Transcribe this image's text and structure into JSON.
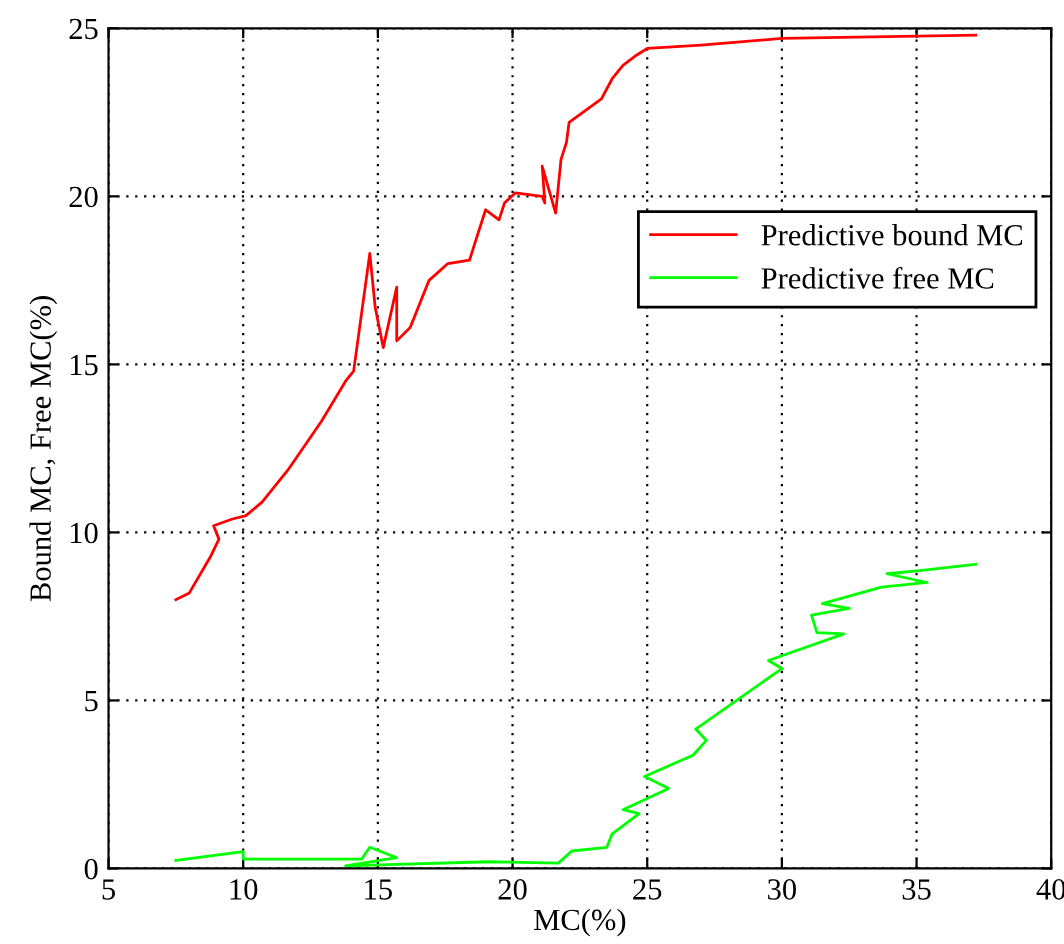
{
  "chart_data": {
    "type": "line",
    "xlabel": "MC(%)",
    "ylabel": "Bound MC, Free MC(%)",
    "xlim": [
      5,
      40
    ],
    "xticks": [
      5,
      10,
      15,
      20,
      25,
      30,
      35,
      40
    ],
    "ylim": [
      0,
      25
    ],
    "yticks": [
      0,
      5,
      10,
      15,
      20,
      25
    ],
    "grid": true,
    "legend": "top right",
    "line_style": "solid",
    "marker": "none",
    "series": [
      {
        "name": "Predictive bound MC",
        "color": "#ff0000",
        "x": [
          7.5,
          8.0,
          8.8,
          9.1,
          8.9,
          9.6,
          10.1,
          10.7,
          11.7,
          12.9,
          13.8,
          14.1,
          14.7,
          14.9,
          15.2,
          15.7,
          15.7,
          16.2,
          16.9,
          17.6,
          18.4,
          19.0,
          19.5,
          19.7,
          20.1,
          21.1,
          21.2,
          21.1,
          21.6,
          21.8,
          22.0,
          22.1,
          23.3,
          23.7,
          24.1,
          24.6,
          25.0,
          27.0,
          30.0,
          37.2
        ],
        "values": [
          8.0,
          8.2,
          9.3,
          9.8,
          10.2,
          10.4,
          10.5,
          10.9,
          11.9,
          13.3,
          14.5,
          14.8,
          18.3,
          16.7,
          15.5,
          17.3,
          15.7,
          16.1,
          17.5,
          18.0,
          18.1,
          19.6,
          19.3,
          19.8,
          20.1,
          20.0,
          19.8,
          20.9,
          19.5,
          21.1,
          21.6,
          22.2,
          22.9,
          23.5,
          23.9,
          24.2,
          24.4,
          24.5,
          24.7,
          24.8
        ]
      },
      {
        "name": "Predictive free MC",
        "color": "#00ff00",
        "x": [
          7.5,
          10.0,
          10.0,
          14.4,
          14.7,
          15.7,
          13.8,
          19.1,
          21.7,
          22.2,
          23.5,
          23.7,
          24.7,
          24.1,
          25.8,
          24.9,
          26.7,
          27.2,
          26.8,
          30.0,
          29.5,
          32.3,
          31.3,
          31.1,
          32.5,
          31.5,
          33.7,
          35.4,
          33.9,
          35.2,
          37.2
        ],
        "values": [
          0.24,
          0.5,
          0.28,
          0.28,
          0.63,
          0.32,
          0.08,
          0.2,
          0.16,
          0.52,
          0.63,
          1.03,
          1.63,
          1.75,
          2.38,
          2.74,
          3.37,
          3.81,
          4.15,
          5.95,
          6.19,
          6.98,
          7.02,
          7.54,
          7.74,
          7.88,
          8.37,
          8.51,
          8.77,
          8.87,
          9.05
        ]
      }
    ]
  }
}
